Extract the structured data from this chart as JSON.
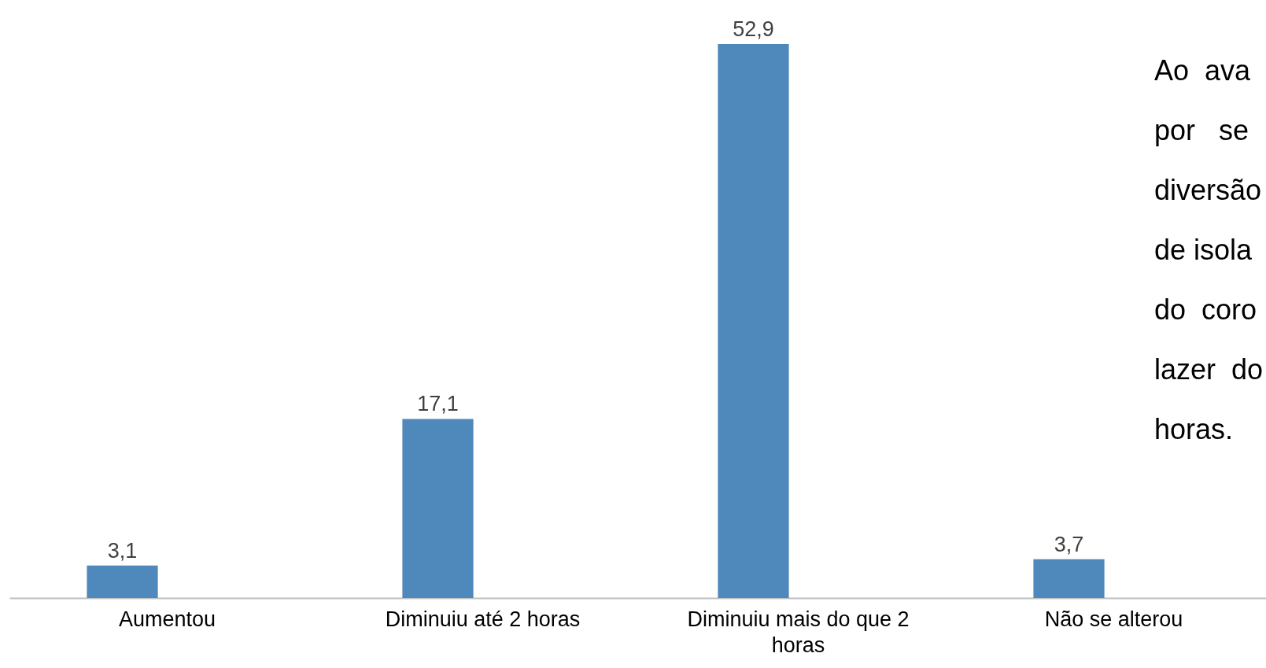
{
  "chart_data": {
    "type": "bar",
    "categories": [
      "Aumentou",
      "Diminuiu até 2 horas",
      "Diminuiu mais do que 2\nhoras",
      "Não se alterou"
    ],
    "values": [
      3.1,
      17.1,
      52.9,
      3.7
    ],
    "color": "#4f88bb",
    "data_labels": true,
    "value_labels": [
      "3,1",
      "17,1",
      "52,9",
      "3,7"
    ],
    "annotations": [
      "Ao  ava",
      "por   se",
      "diversão",
      "de isola",
      "do  coro",
      "lazer  do",
      "horas."
    ]
  }
}
